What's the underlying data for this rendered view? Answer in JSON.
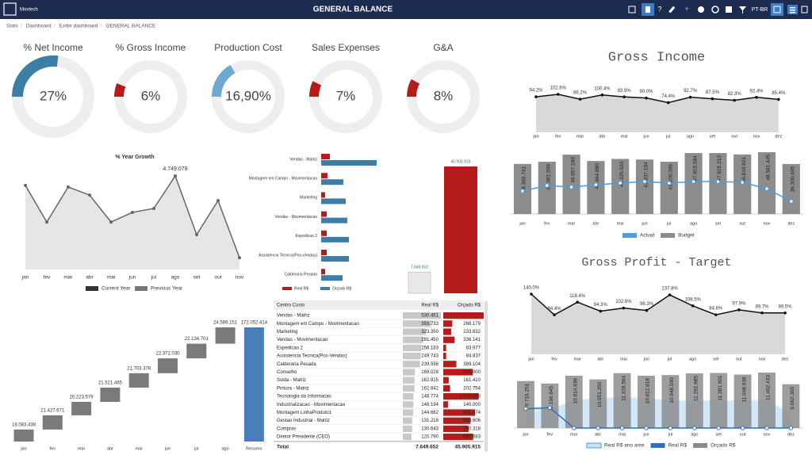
{
  "header": {
    "brand": "Movtech",
    "title": "GENERAL BALANCE",
    "language": "PT-BR"
  },
  "breadcrumb": [
    "Stats",
    "Dashboard",
    "Exibir dashboard",
    "GENERAL BALANCE"
  ],
  "kpis": [
    {
      "title": "% Net Income",
      "value": 27,
      "label": "27%",
      "color": "#3d7ea6"
    },
    {
      "title": "% Gross Income",
      "value": 6,
      "label": "6%",
      "color": "#b71c1c"
    },
    {
      "title": "Production Cost",
      "value": 16.9,
      "label": "16,90%",
      "color": "#6fa8d0"
    },
    {
      "title": "Sales Expenses",
      "value": 7,
      "label": "7%",
      "color": "#b71c1c"
    },
    {
      "title": "G&A",
      "value": 8,
      "label": "8%",
      "color": "#b71c1c"
    }
  ],
  "year_growth": {
    "title": "% Year Growth",
    "categories": [
      "jan",
      "fev",
      "mar",
      "abr",
      "mai",
      "jun",
      "jul",
      "ago",
      "set",
      "out",
      "nov"
    ],
    "values": [
      4270000,
      2410000,
      4190000,
      3780000,
      2410000,
      2900000,
      3100000,
      4749079,
      1770000,
      3500000,
      600000
    ],
    "value_labels": [
      null,
      null,
      null,
      null,
      null,
      null,
      null,
      "4.749.079",
      null,
      null,
      null
    ],
    "color": "#e6e6e6",
    "line_color": "#666666",
    "legend": [
      {
        "name": "Current Year",
        "color": "#333333"
      },
      {
        "name": "Previous Year",
        "color": "#777777"
      }
    ]
  },
  "cost_bars": {
    "categories": [
      "Vendas - Matriz",
      "Montagem em Campo - Movimentacao",
      "Marketing",
      "Vendas - Movimentacao",
      "Expedicao 2",
      "Assistencia Tecnica(Pos-Vendas)",
      "Calderaria Pesada"
    ],
    "series": [
      {
        "name": "Real R$",
        "color": "#b71c1c",
        "values": [
          528000,
          384000,
          240000,
          336000,
          336000,
          336000,
          240000
        ]
      },
      {
        "name": "Orçado R$",
        "color": "#3d7ea6",
        "values": [
          3360000,
          1344000,
          1488000,
          1584000,
          1680000,
          1680000,
          1296000
        ]
      }
    ]
  },
  "totals": {
    "values": [
      7649652,
      45905915
    ],
    "value_labels": [
      "7.649.652",
      "45.905.915"
    ],
    "colors": [
      "#e8e8e8",
      "#b71c1c"
    ]
  },
  "table": {
    "headers": [
      "Centro Custo",
      "Real R$",
      "Orçado R$"
    ],
    "rows": [
      {
        "name": "Vendas - Matriz",
        "real": {
          "value": 530451,
          "label": "530.451"
        },
        "orcado": {
          "value": 1200000,
          "label": null
        }
      },
      {
        "name": "Montagem em Campo - Movimentacao",
        "real": {
          "value": 393733,
          "label": "393.733"
        },
        "orcado": {
          "value": 266179,
          "label": "266.179"
        }
      },
      {
        "name": "Marketing",
        "real": {
          "value": 323350,
          "label": "323.350"
        },
        "orcado": {
          "value": 233832,
          "label": "233.832"
        }
      },
      {
        "name": "Vendas - Movimentacao",
        "real": {
          "value": 281450,
          "label": "281.450"
        },
        "orcado": {
          "value": 336141,
          "label": "336.141"
        }
      },
      {
        "name": "Expedicao 2",
        "real": {
          "value": 256183,
          "label": "256.183"
        },
        "orcado": {
          "value": 83977,
          "label": "83.977"
        }
      },
      {
        "name": "Assistencia Tecnica(Pos-Vendas)",
        "real": {
          "value": 249743,
          "label": "249.743"
        },
        "orcado": {
          "value": 84837,
          "label": "84.837"
        }
      },
      {
        "name": "Calderaria Pesada",
        "real": {
          "value": 239598,
          "label": "239.598"
        },
        "orcado": {
          "value": 389104,
          "label": "389.104"
        }
      },
      {
        "name": "Conselho",
        "real": {
          "value": 169028,
          "label": "169.028"
        },
        "orcado": {
          "value": 875000,
          "label": "875.000"
        }
      },
      {
        "name": "Solda - Matriz",
        "real": {
          "value": 162915,
          "label": "162.915"
        },
        "orcado": {
          "value": 161410,
          "label": "161.410"
        }
      },
      {
        "name": "Pintura - Matriz",
        "real": {
          "value": 162842,
          "label": "162.842"
        },
        "orcado": {
          "value": 202754,
          "label": "202.754"
        }
      },
      {
        "name": "Tecnologia da Informacao",
        "real": {
          "value": 148774,
          "label": "148.774"
        },
        "orcado": {
          "value": 1048988,
          "label": "1.048.988"
        }
      },
      {
        "name": "Industrializacao - Movimentacao",
        "real": {
          "value": 146194,
          "label": "146.194"
        },
        "orcado": {
          "value": 140000,
          "label": "140.000"
        }
      },
      {
        "name": "Montagem LinhaProduto1",
        "real": {
          "value": 144662,
          "label": "144.662"
        },
        "orcado": {
          "value": 941474,
          "label": "941.474"
        }
      },
      {
        "name": "Gestao Industrial - Matriz",
        "real": {
          "value": 131218,
          "label": "131.218"
        },
        "orcado": {
          "value": 806606,
          "label": "806.606"
        }
      },
      {
        "name": "Compras",
        "real": {
          "value": 130643,
          "label": "130.643"
        },
        "orcado": {
          "value": 750318,
          "label": "750.318"
        }
      },
      {
        "name": "Diretor Presidente (CEO)",
        "real": {
          "value": 120790,
          "label": "120.790"
        },
        "orcado": {
          "value": 887683,
          "label": "887.683"
        }
      }
    ],
    "total": {
      "name": "Total",
      "real": "7.649.652",
      "orcado": "45.905.915"
    }
  },
  "waterfall": {
    "categories": [
      "jan",
      "fev",
      "mar",
      "abr",
      "mai",
      "jun",
      "jul",
      "ago",
      "Resumo"
    ],
    "values": [
      18083438,
      21427671,
      20223579,
      21521465,
      21703378,
      22372030,
      22134701,
      24586151,
      172052414
    ],
    "value_labels": [
      "18.083.438",
      "21.427.671",
      "20.223.579",
      "21.521.465",
      "21.703.378",
      "22.372.030",
      "22.134.701",
      "24.586.151",
      "172.052.414"
    ],
    "color": "#7a7a7a",
    "total_color": "#4a7ebb"
  },
  "gross_income": {
    "title": "Gross Income",
    "categories": [
      "jan",
      "fev",
      "mar",
      "abr",
      "mai",
      "jun",
      "jul",
      "ago",
      "set",
      "out",
      "nov",
      "dez"
    ],
    "values": [
      94.2,
      102.6,
      86.2,
      100.4,
      93.9,
      90,
      74.4,
      92.7,
      87.5,
      82.3,
      92.4,
      85.4
    ],
    "value_labels": [
      "94.2%",
      "102.6%",
      "86.2%",
      "100.4%",
      "93.9%",
      "90.0%",
      "74.4%",
      "92.7%",
      "87.5%",
      "82.3%",
      "92.4%",
      "85.4%"
    ],
    "color": "#d9d9d9"
  },
  "actual_budget": {
    "categories": [
      "jan",
      "fev",
      "mar",
      "abr",
      "mai",
      "jun",
      "jul",
      "ago",
      "set",
      "out",
      "nov",
      "dez"
    ],
    "series": [
      {
        "name": "Actual",
        "color": "#4a9de0",
        "values": [
          18100000,
          22400000,
          21200000,
          23000000,
          24300000,
          25500000,
          24300000,
          25500000,
          25500000,
          24900000,
          19900000,
          10000000
        ]
      },
      {
        "name": "Budget",
        "color": "#8c8c8c",
        "values": [
          39360741,
          41081598,
          46657180,
          41664880,
          43325033,
          42837104,
          41100396,
          47915584,
          47925213,
          46819921,
          48581445,
          39300495
        ],
        "value_labels": [
          "39.360.741",
          "41.081.598",
          "46.657.180",
          "41.664.880",
          "43.325.033",
          "42.837.104",
          "41.100.396",
          "47.915.584",
          "47.925.213",
          "46.819.921",
          "48.581.445",
          "39.300.495"
        ]
      }
    ]
  },
  "gross_profit": {
    "title": "Gross Profit - Target",
    "categories": [
      "jan",
      "fev",
      "mar",
      "abr",
      "mai",
      "jun",
      "jul",
      "ago",
      "set",
      "out",
      "nov",
      "dez"
    ],
    "values": [
      140,
      84.4,
      118.4,
      94.3,
      102.6,
      96.3,
      137.8,
      108.5,
      84.6,
      97.9,
      89.7,
      89.5
    ],
    "value_labels": [
      "140.0%",
      "84.4%",
      "118.4%",
      "94.3%",
      "102.6%",
      "96.3%",
      "137.8%",
      "108.5%",
      "84.6%",
      "97.9%",
      "89.7%",
      "89.5%"
    ],
    "color": "#d9d9d9"
  },
  "real_budget": {
    "categories": [
      "jan",
      "fev",
      "mar",
      "abr",
      "mai",
      "jun",
      "jul",
      "ago",
      "set",
      "out",
      "nov",
      "dez"
    ],
    "series": [
      {
        "name": "Real R$ ano ante",
        "color": "#c6e2f7",
        "values": [
          4200000,
          3900000,
          5700000,
          6200000,
          6400000,
          6200000,
          5700000,
          5700000,
          5700000,
          5700000,
          5900000,
          2900000
        ]
      },
      {
        "name": "Real R$",
        "color": "#2f6fc0",
        "values": [
          4000000,
          4200000,
          0,
          0,
          0,
          0,
          0,
          0,
          0,
          0,
          0,
          0
        ]
      },
      {
        "name": "Orçado R$",
        "color": "#8c8c8c",
        "values": [
          9716251,
          9196645,
          10814936,
          10051250,
          11328564,
          10812818,
          10948500,
          11292985,
          11381901,
          11048936,
          11462433,
          9062365
        ],
        "value_labels": [
          "9.716.251",
          "9.196.645",
          "10.814.936",
          "10.051.250",
          "11.328.564",
          "10.812.818",
          "10.948.500",
          "11.292.985",
          "11.381.901",
          "11.048.936",
          "11.462.433",
          "9.062.365"
        ]
      }
    ]
  }
}
